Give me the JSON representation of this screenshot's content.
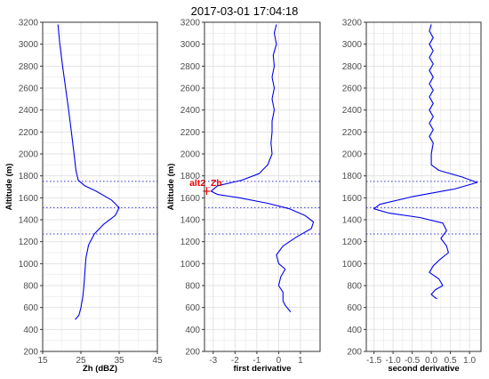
{
  "title": "2017-03-01 17:04:18",
  "colors": {
    "line": "#0000ee",
    "ref": "#3333dd",
    "marker": "#ee0000",
    "grid": "#e3e3e3",
    "frame": "#333333"
  },
  "chart_data": [
    {
      "type": "line",
      "ylabel": "Altitude (m)",
      "xlabel": "Zh (dBZ)",
      "xlim": [
        15,
        45
      ],
      "ylim": [
        200,
        3200
      ],
      "xticks": [
        "15",
        "25",
        "35",
        "45"
      ],
      "xtick_values": [
        15,
        25,
        35,
        45
      ],
      "yticks": [
        200,
        400,
        600,
        800,
        1000,
        1200,
        1400,
        1600,
        1800,
        2000,
        2200,
        2400,
        2600,
        2800,
        3000,
        3200
      ],
      "hlines": [
        1750,
        1510,
        1270
      ],
      "series": [
        {
          "values": [
            [
              19,
              3180
            ],
            [
              19.5,
              3000
            ],
            [
              20.2,
              2800
            ],
            [
              21,
              2600
            ],
            [
              21.8,
              2400
            ],
            [
              22.5,
              2200
            ],
            [
              23.2,
              2000
            ],
            [
              23.7,
              1850
            ],
            [
              24.3,
              1760
            ],
            [
              26,
              1710
            ],
            [
              29,
              1660
            ],
            [
              33,
              1580
            ],
            [
              35,
              1510
            ],
            [
              34,
              1440
            ],
            [
              31,
              1360
            ],
            [
              28.5,
              1270
            ],
            [
              27,
              1170
            ],
            [
              26.3,
              1050
            ],
            [
              26,
              900
            ],
            [
              25.8,
              800
            ],
            [
              25.5,
              700
            ],
            [
              25,
              600
            ],
            [
              24.5,
              530
            ],
            [
              23.5,
              490
            ]
          ]
        }
      ]
    },
    {
      "type": "line",
      "ylabel": "Altitude (m)",
      "xlabel": "first derivative",
      "xlim": [
        -3.4,
        1.9
      ],
      "ylim": [
        200,
        3200
      ],
      "xticks": [
        "-3",
        "-2",
        "-1",
        "0",
        "1"
      ],
      "xtick_values": [
        -3,
        -2,
        -1,
        0,
        1
      ],
      "yticks": [
        200,
        400,
        600,
        800,
        1000,
        1200,
        1400,
        1600,
        1800,
        2000,
        2200,
        2400,
        2600,
        2800,
        3000,
        3200
      ],
      "hlines": [
        1750,
        1510,
        1270
      ],
      "annotation": {
        "text": "alt2_Zh",
        "x": -3.3,
        "y": 1660
      },
      "series": [
        {
          "values": [
            [
              -0.1,
              3180
            ],
            [
              -0.2,
              3100
            ],
            [
              -0.1,
              3000
            ],
            [
              -0.25,
              2900
            ],
            [
              -0.2,
              2800
            ],
            [
              -0.3,
              2700
            ],
            [
              -0.2,
              2600
            ],
            [
              -0.3,
              2500
            ],
            [
              -0.2,
              2400
            ],
            [
              -0.3,
              2300
            ],
            [
              -0.3,
              2200
            ],
            [
              -0.35,
              2100
            ],
            [
              -0.3,
              2000
            ],
            [
              -0.5,
              1900
            ],
            [
              -0.9,
              1820
            ],
            [
              -1.7,
              1760
            ],
            [
              -2.8,
              1710
            ],
            [
              -3.1,
              1660
            ],
            [
              -2.8,
              1630
            ],
            [
              -1.8,
              1600
            ],
            [
              -0.5,
              1550
            ],
            [
              0.5,
              1500
            ],
            [
              1.2,
              1440
            ],
            [
              1.6,
              1380
            ],
            [
              1.5,
              1320
            ],
            [
              0.8,
              1240
            ],
            [
              0.2,
              1160
            ],
            [
              -0.1,
              1080
            ],
            [
              0,
              1000
            ],
            [
              0.3,
              950
            ],
            [
              0.1,
              880
            ],
            [
              0,
              800
            ],
            [
              0.2,
              740
            ],
            [
              0.2,
              660
            ],
            [
              0.3,
              620
            ],
            [
              0.55,
              560
            ]
          ]
        }
      ]
    },
    {
      "type": "line",
      "ylabel": "",
      "xlabel": "second derivative",
      "xlim": [
        -1.7,
        1.3
      ],
      "ylim": [
        200,
        3200
      ],
      "xticks": [
        "-1.5",
        "-1.0",
        "-0.5",
        "0.0",
        "0.5",
        "1.0"
      ],
      "xtick_values": [
        -1.5,
        -1.0,
        -0.5,
        0.0,
        0.5,
        1.0
      ],
      "yticks": [
        200,
        400,
        600,
        800,
        1000,
        1200,
        1400,
        1600,
        1800,
        2000,
        2200,
        2400,
        2600,
        2800,
        3000,
        3200
      ],
      "hlines": [
        1750,
        1510,
        1270
      ],
      "series": [
        {
          "values": [
            [
              0,
              3180
            ],
            [
              -0.05,
              3120
            ],
            [
              0.05,
              3060
            ],
            [
              -0.05,
              3000
            ],
            [
              0.05,
              2940
            ],
            [
              -0.05,
              2880
            ],
            [
              0.05,
              2820
            ],
            [
              -0.05,
              2760
            ],
            [
              0.05,
              2700
            ],
            [
              -0.05,
              2640
            ],
            [
              0.05,
              2580
            ],
            [
              -0.05,
              2520
            ],
            [
              0.05,
              2460
            ],
            [
              -0.05,
              2400
            ],
            [
              0.05,
              2340
            ],
            [
              -0.05,
              2280
            ],
            [
              0.05,
              2220
            ],
            [
              -0.05,
              2160
            ],
            [
              0.05,
              2100
            ],
            [
              0,
              2000
            ],
            [
              0,
              1900
            ],
            [
              0.2,
              1850
            ],
            [
              0.8,
              1790
            ],
            [
              1.2,
              1740
            ],
            [
              0.6,
              1680
            ],
            [
              -0.5,
              1610
            ],
            [
              -1.35,
              1540
            ],
            [
              -1.5,
              1500
            ],
            [
              -1.1,
              1460
            ],
            [
              -0.3,
              1420
            ],
            [
              0.3,
              1370
            ],
            [
              0.4,
              1300
            ],
            [
              0.25,
              1230
            ],
            [
              0.4,
              1160
            ],
            [
              0.45,
              1100
            ],
            [
              0.2,
              1030
            ],
            [
              0.05,
              980
            ],
            [
              -0.05,
              920
            ],
            [
              0.2,
              860
            ],
            [
              0.3,
              800
            ],
            [
              0.1,
              760
            ],
            [
              0,
              720
            ],
            [
              0.1,
              690
            ],
            [
              0.15,
              680
            ]
          ]
        }
      ]
    }
  ]
}
